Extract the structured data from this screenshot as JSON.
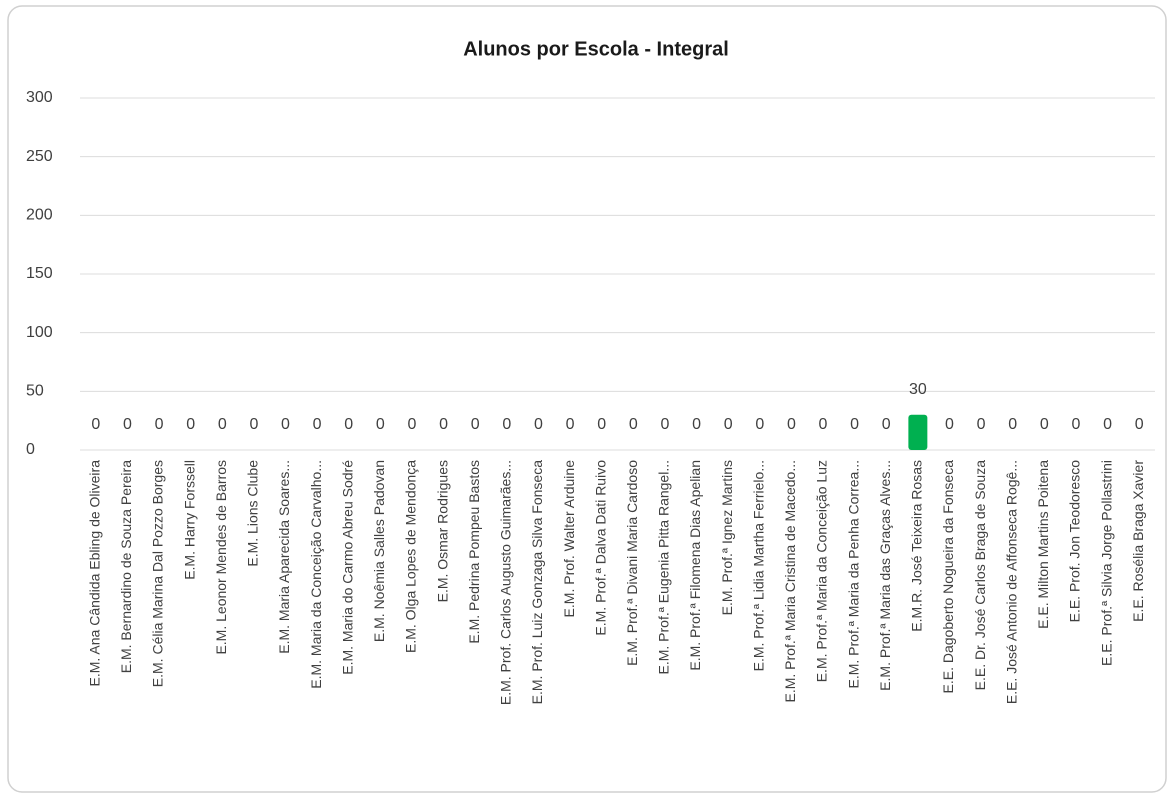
{
  "chart_data": {
    "type": "bar",
    "title": "Alunos por Escola - Integral",
    "categories": [
      "E.M. Ana Cândida Ebling de Oliveira",
      "E.M. Bernardino de Souza Pereira",
      "E.M. Célia Marina Dal Pozzo Borges",
      "E.M. Harry Forssell",
      "E.M. Leonor Mendes de Barros",
      "E.M. Lions Clube",
      "E.M. Maria Aparecida Soares...",
      "E.M. Maria da Conceição Carvalho...",
      "E.M. Maria do Carmo Abreu Sodré",
      "E.M. Noêmia Salles Padovan",
      "E.M. Olga Lopes de Mendonça",
      "E.M. Osmar Rodrigues",
      "E.M. Pedrina Pompeu Bastos",
      "E.M. Prof. Carlos Augusto Guimarães...",
      "E.M. Prof. Luiz Gonzaga Silva Fonseca",
      "E.M. Prof. Walter Arduine",
      "E.M. Prof.ª Dalva Dati Ruivo",
      "E.M. Prof.ª Divani Maria Cardoso",
      "E.M. Prof.ª Eugenia Pitta Rangel...",
      "E.M. Prof.ª Filomena Dias Apelian",
      "E.M. Prof.ª Ignez Martins",
      "E.M. Prof.ª Lidia Martha Ferrielo...",
      "E.M. Prof.ª Maria Cristina de Macedo...",
      "E.M. Prof.ª Maria da Conceição Luz",
      "E.M. Prof.ª Maria da Penha Correa...",
      "E.M. Prof.ª Maria das Graças Alves...",
      "E.M.R. José Teixeira Rosas",
      "E.E. Dagoberto Nogueira da Fonseca",
      "E.E. Dr. José Carlos Braga de Souza",
      "E.E. José Antonio de Affonseca Rogê...",
      "E.E. Milton Martins Poitena",
      "E.E. Prof. Jon Teodoresco",
      "E.E. Prof.ª Silvia Jorge Pollastrini",
      "E.E. Rosélia Braga Xavier"
    ],
    "values": [
      0,
      0,
      0,
      0,
      0,
      0,
      0,
      0,
      0,
      0,
      0,
      0,
      0,
      0,
      0,
      0,
      0,
      0,
      0,
      0,
      0,
      0,
      0,
      0,
      0,
      0,
      30,
      0,
      0,
      0,
      0,
      0,
      0,
      0
    ],
    "color": "#00b050",
    "ylim": [
      0,
      300
    ],
    "yticks": [
      0,
      50,
      100,
      150,
      200,
      250,
      300
    ],
    "grid": true
  }
}
